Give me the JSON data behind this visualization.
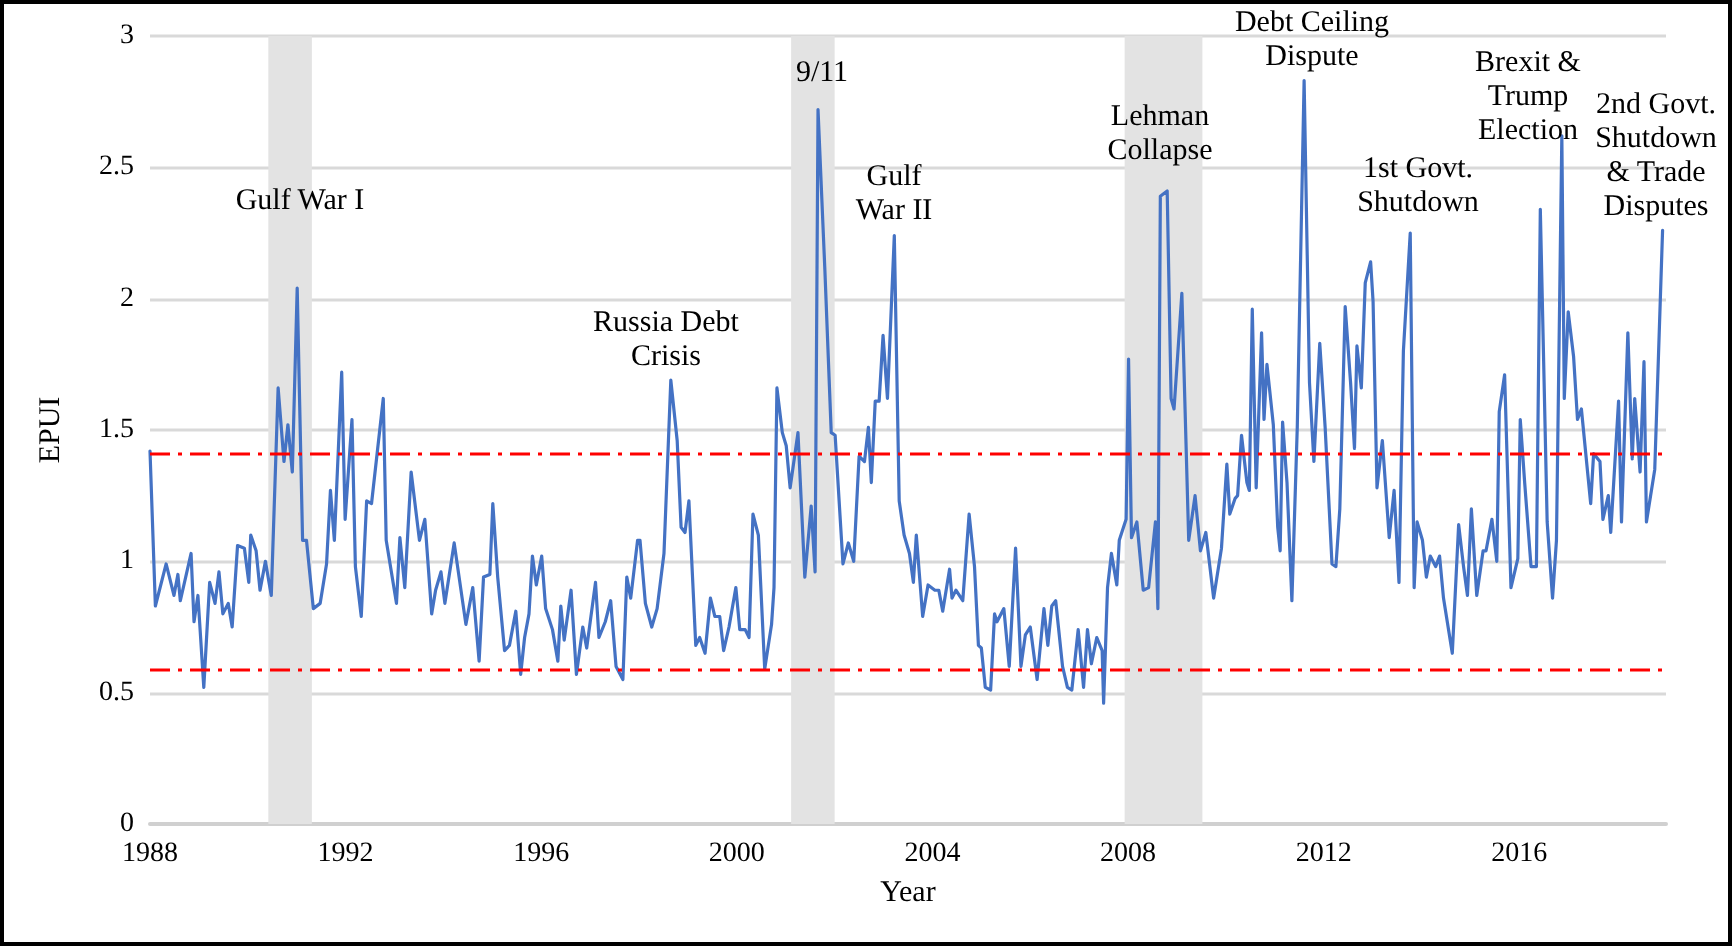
{
  "chart_data": {
    "type": "line",
    "xlabel": "Year",
    "ylabel": "EPUI",
    "xlim": [
      1988,
      2019
    ],
    "xticks": [
      1988,
      1992,
      1996,
      2000,
      2004,
      2008,
      2012,
      2016
    ],
    "ylim": [
      0,
      3
    ],
    "yticks": [
      0,
      0.5,
      1,
      1.5,
      2,
      2.5,
      3
    ],
    "grid": "y",
    "marker": "none",
    "line_style": "solid",
    "series": [
      {
        "color": "#4472c4",
        "x": [
          1988.0,
          1988.11,
          1988.33,
          1988.49,
          1988.57,
          1988.62,
          1988.84,
          1988.9,
          1988.98,
          1989.1,
          1989.22,
          1989.33,
          1989.41,
          1989.49,
          1989.6,
          1989.68,
          1989.79,
          1989.93,
          1990.02,
          1990.06,
          1990.17,
          1990.25,
          1990.36,
          1990.48,
          1990.62,
          1990.74,
          1990.82,
          1990.91,
          1991.01,
          1991.12,
          1991.2,
          1991.34,
          1991.48,
          1991.61,
          1991.69,
          1991.77,
          1991.92,
          1991.99,
          1992.13,
          1992.2,
          1992.32,
          1992.43,
          1992.53,
          1992.77,
          1992.83,
          1993.04,
          1993.11,
          1993.21,
          1993.34,
          1993.51,
          1993.62,
          1993.76,
          1993.84,
          1993.95,
          1994.03,
          1994.22,
          1994.46,
          1994.6,
          1994.73,
          1994.82,
          1994.95,
          1995.01,
          1995.11,
          1995.25,
          1995.35,
          1995.48,
          1995.58,
          1995.66,
          1995.75,
          1995.82,
          1995.9,
          1996.01,
          1996.09,
          1996.23,
          1996.34,
          1996.4,
          1996.47,
          1996.61,
          1996.72,
          1996.85,
          1996.93,
          1997.11,
          1997.18,
          1997.31,
          1997.42,
          1997.53,
          1997.67,
          1997.75,
          1997.83,
          1997.97,
          1998.02,
          1998.13,
          1998.26,
          1998.37,
          1998.51,
          1998.65,
          1998.78,
          1998.86,
          1998.94,
          1999.02,
          1999.16,
          1999.24,
          1999.35,
          1999.46,
          1999.55,
          1999.65,
          1999.73,
          1999.84,
          1999.98,
          2000.06,
          2000.17,
          2000.25,
          2000.33,
          2000.44,
          2000.57,
          2000.71,
          2000.76,
          2000.82,
          2000.93,
          2001.01,
          2001.09,
          2001.25,
          2001.39,
          2001.52,
          2001.6,
          2001.66,
          2001.8,
          2001.93,
          2002.01,
          2002.17,
          2002.28,
          2002.39,
          2002.5,
          2002.61,
          2002.69,
          2002.75,
          2002.83,
          2002.91,
          2002.99,
          2003.08,
          2003.22,
          2003.32,
          2003.42,
          2003.53,
          2003.61,
          2003.67,
          2003.8,
          2003.91,
          2004.05,
          2004.13,
          2004.21,
          2004.35,
          2004.4,
          2004.48,
          2004.62,
          2004.75,
          2004.86,
          2004.94,
          2005.0,
          2005.08,
          2005.19,
          2005.27,
          2005.32,
          2005.46,
          2005.57,
          2005.7,
          2005.81,
          2005.9,
          2006.0,
          2006.14,
          2006.28,
          2006.36,
          2006.44,
          2006.52,
          2006.66,
          2006.76,
          2006.85,
          2006.98,
          2007.09,
          2007.17,
          2007.25,
          2007.36,
          2007.47,
          2007.5,
          2007.58,
          2007.66,
          2007.77,
          2007.82,
          2007.96,
          2008.01,
          2008.07,
          2008.18,
          2008.31,
          2008.42,
          2008.56,
          2008.61,
          2008.66,
          2008.8,
          2008.88,
          2008.94,
          2009.1,
          2009.24,
          2009.37,
          2009.48,
          2009.59,
          2009.75,
          2009.91,
          2010.02,
          2010.08,
          2010.19,
          2010.24,
          2010.32,
          2010.43,
          2010.48,
          2010.54,
          2010.62,
          2010.73,
          2010.78,
          2010.84,
          2010.97,
          2011.06,
          2011.11,
          2011.16,
          2011.25,
          2011.35,
          2011.46,
          2011.6,
          2011.71,
          2011.8,
          2011.92,
          2012.03,
          2012.17,
          2012.25,
          2012.33,
          2012.44,
          2012.55,
          2012.63,
          2012.68,
          2012.77,
          2012.85,
          2012.96,
          2013.01,
          2013.09,
          2013.2,
          2013.34,
          2013.44,
          2013.54,
          2013.63,
          2013.77,
          2013.85,
          2013.91,
          2014.02,
          2014.1,
          2014.18,
          2014.29,
          2014.37,
          2014.45,
          2014.63,
          2014.76,
          2014.86,
          2014.94,
          2015.02,
          2015.13,
          2015.26,
          2015.32,
          2015.44,
          2015.54,
          2015.59,
          2015.7,
          2015.83,
          2015.97,
          2016.02,
          2016.11,
          2016.24,
          2016.35,
          2016.43,
          2016.57,
          2016.68,
          2016.76,
          2016.87,
          2016.92,
          2017.0,
          2017.11,
          2017.19,
          2017.27,
          2017.46,
          2017.52,
          2017.65,
          2017.71,
          2017.82,
          2017.87,
          2018.03,
          2018.09,
          2018.22,
          2018.31,
          2018.36,
          2018.47,
          2018.55,
          2018.6,
          2018.77,
          2018.93
        ],
        "values": [
          1.42,
          0.83,
          0.99,
          0.87,
          0.95,
          0.85,
          1.03,
          0.77,
          0.87,
          0.52,
          0.92,
          0.84,
          0.96,
          0.8,
          0.84,
          0.75,
          1.06,
          1.05,
          0.92,
          1.1,
          1.04,
          0.89,
          1.0,
          0.87,
          1.66,
          1.38,
          1.52,
          1.34,
          2.04,
          1.08,
          1.08,
          0.82,
          0.84,
          0.99,
          1.27,
          1.08,
          1.72,
          1.16,
          1.54,
          0.98,
          0.79,
          1.23,
          1.22,
          1.62,
          1.08,
          0.84,
          1.09,
          0.9,
          1.34,
          1.08,
          1.16,
          0.8,
          0.89,
          0.96,
          0.84,
          1.07,
          0.76,
          0.9,
          0.62,
          0.94,
          0.95,
          1.22,
          0.94,
          0.66,
          0.68,
          0.81,
          0.57,
          0.71,
          0.8,
          1.02,
          0.91,
          1.02,
          0.82,
          0.74,
          0.62,
          0.83,
          0.7,
          0.89,
          0.57,
          0.75,
          0.67,
          0.92,
          0.71,
          0.77,
          0.85,
          0.6,
          0.55,
          0.94,
          0.86,
          1.08,
          1.08,
          0.84,
          0.75,
          0.82,
          1.03,
          1.69,
          1.46,
          1.13,
          1.11,
          1.23,
          0.68,
          0.71,
          0.65,
          0.86,
          0.79,
          0.79,
          0.66,
          0.75,
          0.9,
          0.74,
          0.74,
          0.71,
          1.18,
          1.1,
          0.59,
          0.76,
          0.9,
          1.66,
          1.49,
          1.44,
          1.28,
          1.49,
          0.94,
          1.21,
          0.96,
          2.72,
          2.11,
          1.49,
          1.48,
          0.99,
          1.07,
          1.0,
          1.4,
          1.38,
          1.51,
          1.3,
          1.61,
          1.61,
          1.86,
          1.62,
          2.24,
          1.23,
          1.1,
          1.03,
          0.92,
          1.1,
          0.79,
          0.91,
          0.89,
          0.89,
          0.81,
          0.97,
          0.86,
          0.89,
          0.85,
          1.18,
          0.98,
          0.68,
          0.67,
          0.52,
          0.51,
          0.8,
          0.77,
          0.82,
          0.6,
          1.05,
          0.6,
          0.72,
          0.75,
          0.55,
          0.82,
          0.68,
          0.83,
          0.85,
          0.6,
          0.52,
          0.51,
          0.74,
          0.52,
          0.74,
          0.61,
          0.71,
          0.66,
          0.46,
          0.9,
          1.03,
          0.91,
          1.08,
          1.16,
          1.77,
          1.09,
          1.15,
          0.89,
          0.9,
          1.15,
          0.82,
          2.39,
          2.41,
          1.62,
          1.58,
          2.02,
          1.08,
          1.25,
          1.04,
          1.11,
          0.86,
          1.05,
          1.37,
          1.18,
          1.24,
          1.25,
          1.48,
          1.3,
          1.27,
          1.96,
          1.28,
          1.87,
          1.54,
          1.75,
          1.52,
          1.13,
          1.04,
          1.53,
          1.3,
          0.85,
          1.51,
          2.83,
          1.68,
          1.38,
          1.83,
          1.51,
          0.99,
          0.98,
          1.2,
          1.97,
          1.68,
          1.43,
          1.82,
          1.66,
          2.06,
          2.14,
          1.99,
          1.28,
          1.46,
          1.09,
          1.27,
          0.92,
          1.8,
          2.25,
          0.9,
          1.15,
          1.08,
          0.94,
          1.02,
          0.98,
          1.02,
          0.86,
          0.65,
          1.14,
          0.98,
          0.87,
          1.2,
          0.87,
          1.04,
          1.04,
          1.16,
          1.0,
          1.57,
          1.71,
          0.9,
          1.01,
          1.54,
          1.3,
          0.98,
          0.98,
          2.34,
          1.15,
          0.86,
          1.08,
          2.62,
          1.62,
          1.95,
          1.78,
          1.54,
          1.58,
          1.22,
          1.41,
          1.38,
          1.16,
          1.25,
          1.11,
          1.61,
          1.15,
          1.87,
          1.39,
          1.62,
          1.34,
          1.76,
          1.15,
          1.35,
          2.26
        ]
      }
    ],
    "ref_lines": [
      {
        "axis": "y",
        "value": 1.41,
        "color": "#ff0000",
        "line_style": "dashed"
      },
      {
        "axis": "y",
        "value": 0.59,
        "color": "#ff0000",
        "line_style": "dashed"
      }
    ],
    "bands": [
      {
        "axis": "x",
        "from": 1990.42,
        "to": 1991.31,
        "color": "#e3e3e3"
      },
      {
        "axis": "x",
        "from": 2001.11,
        "to": 2002.0,
        "color": "#e3e3e3"
      },
      {
        "axis": "x",
        "from": 2007.93,
        "to": 2009.52,
        "color": "#e3e3e3"
      }
    ],
    "annotations": [
      "Gulf War I",
      "Russia Debt\nCrisis",
      "9/11",
      "Gulf\nWar II",
      "Lehman\nCollapse",
      "Debt Ceiling\nDispute",
      "1st Govt.\nShutdown",
      "Brexit &\nTrump\nElection",
      "2nd Govt.\nShutdown\n& Trade\nDisputes"
    ]
  }
}
